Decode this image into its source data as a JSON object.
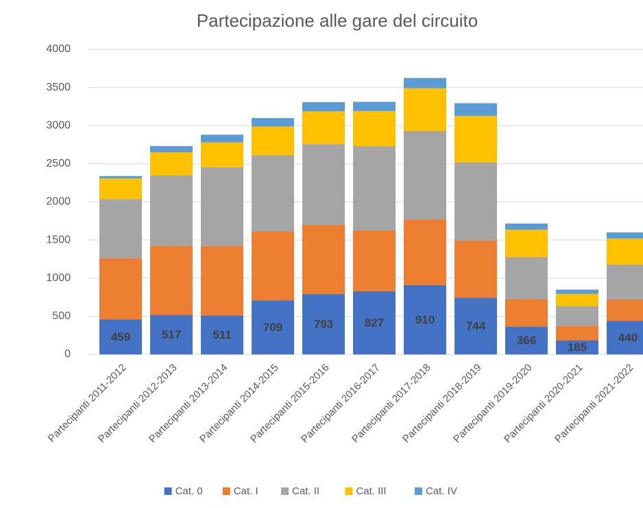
{
  "chart_data": {
    "type": "stacked_bar",
    "title": "Partecipazione alle gare del circuito",
    "categories": [
      "Partecipanti 2011-2012",
      "Partecipanti 2012-2013",
      "Partecipanti 2013-2014",
      "Partecipanti 2014-2015",
      "Partecipanti 2015-2016",
      "Partecipanti 2016-2017",
      "Partecipanti 2017-2018",
      "Partecipanti 2018-2019",
      "Partecipanti 2019-2020",
      "Partecipanti 2020-2021",
      "Partecipanti 2021-2022"
    ],
    "series": [
      {
        "name": "Cat. 0",
        "color": "#4472c4",
        "show_labels": true,
        "values": [
          459,
          517,
          511,
          709,
          793,
          827,
          910,
          744,
          366,
          185,
          440
        ]
      },
      {
        "name": "Cat. I",
        "color": "#ed7d31",
        "values": [
          800,
          910,
          910,
          900,
          905,
          800,
          860,
          750,
          360,
          190,
          280
        ]
      },
      {
        "name": "Cat. II",
        "color": "#a5a5a5",
        "values": [
          780,
          920,
          1035,
          1005,
          1060,
          1105,
          1160,
          1025,
          550,
          260,
          460
        ]
      },
      {
        "name": "Cat. III",
        "color": "#ffc000",
        "values": [
          270,
          305,
          325,
          375,
          430,
          460,
          560,
          610,
          360,
          160,
          340
        ]
      },
      {
        "name": "Cat. IV",
        "color": "#5b9bd5",
        "values": [
          30,
          80,
          100,
          110,
          120,
          120,
          135,
          165,
          80,
          55,
          80
        ]
      }
    ],
    "ylim": [
      0,
      4000
    ],
    "yticks": [
      0,
      500,
      1000,
      1500,
      2000,
      2500,
      3000,
      3500,
      4000
    ],
    "grid": true,
    "legend": "bottom"
  }
}
